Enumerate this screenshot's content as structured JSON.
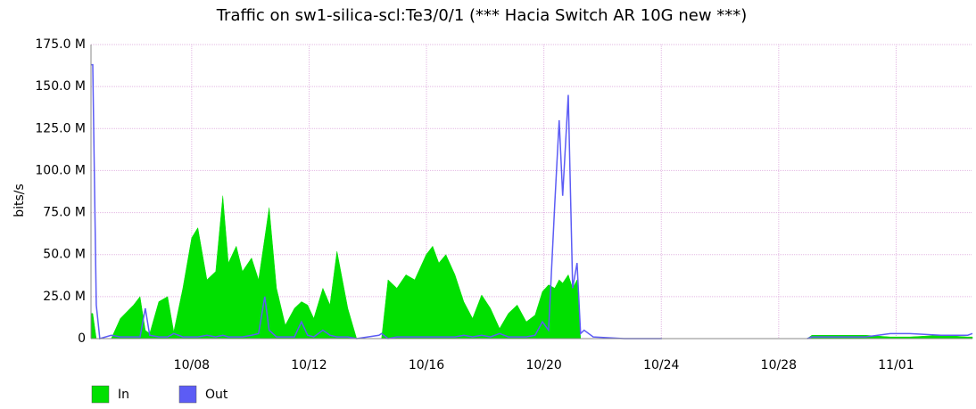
{
  "chart_data": {
    "type": "area",
    "title": "Traffic on sw1-silica-scl:Te3/0/1 (*** Hacia Switch AR 10G new ***)",
    "y_label": "bits/s",
    "x": [
      4.57,
      4.63,
      4.75,
      4.87,
      5.26,
      5.57,
      6.02,
      6.24,
      6.42,
      6.57,
      6.88,
      7.18,
      7.39,
      7.7,
      8.0,
      8.21,
      8.52,
      8.82,
      9.06,
      9.25,
      9.52,
      9.73,
      10.04,
      10.28,
      10.49,
      10.64,
      10.89,
      11.19,
      11.5,
      11.74,
      11.95,
      12.16,
      12.47,
      12.71,
      12.95,
      13.32,
      13.62,
      14.38,
      14.47,
      14.69,
      14.99,
      15.3,
      15.6,
      15.99,
      16.21,
      16.42,
      16.66,
      16.97,
      17.27,
      17.57,
      17.88,
      18.18,
      18.49,
      18.79,
      19.09,
      19.4,
      19.7,
      19.95,
      20.16,
      20.37,
      20.52,
      20.64,
      20.83,
      20.98,
      21.13,
      21.25,
      21.37,
      21.68,
      22.74,
      24.02,
      26.39,
      28.97,
      29.13,
      30.04,
      30.95,
      31.8,
      32.47,
      33.53,
      34.44,
      34.6
    ],
    "series": [
      {
        "name": "In",
        "color": "#00e000",
        "style": "area",
        "values": [
          15000000,
          15000000,
          0,
          0,
          0,
          12000000,
          20000000,
          25000000,
          5000000,
          3000000,
          22000000,
          25000000,
          4000000,
          30000000,
          60000000,
          66000000,
          35000000,
          40000000,
          85000000,
          45000000,
          55000000,
          40000000,
          48000000,
          35000000,
          60000000,
          78000000,
          30000000,
          8000000,
          18000000,
          22000000,
          20000000,
          12000000,
          30000000,
          20000000,
          52000000,
          18000000,
          0,
          0,
          0,
          35000000,
          30000000,
          38000000,
          35000000,
          50000000,
          55000000,
          45000000,
          50000000,
          38000000,
          22000000,
          12000000,
          26000000,
          18000000,
          6000000,
          15000000,
          20000000,
          10000000,
          14000000,
          28000000,
          32000000,
          30000000,
          35000000,
          33000000,
          38000000,
          30000000,
          35000000,
          0,
          0,
          0,
          0,
          0,
          null,
          0,
          2000000,
          2000000,
          2000000,
          1000000,
          1000000,
          2000000,
          1000000,
          1000000
        ]
      },
      {
        "name": "Out",
        "color": "#5c5cf5",
        "style": "line",
        "values": [
          163000000,
          163000000,
          20000000,
          0,
          2000000,
          1000000,
          1000000,
          1000000,
          18000000,
          2000000,
          1000000,
          1000000,
          3000000,
          1000000,
          1000000,
          1000000,
          2000000,
          1000000,
          2000000,
          1000000,
          1000000,
          1000000,
          2000000,
          3000000,
          25000000,
          5000000,
          1000000,
          1000000,
          1000000,
          10000000,
          2000000,
          1000000,
          5000000,
          2000000,
          1000000,
          1000000,
          0,
          2000000,
          3000000,
          0,
          1000000,
          1000000,
          1000000,
          1000000,
          1000000,
          1000000,
          1000000,
          1000000,
          2000000,
          1000000,
          2000000,
          1000000,
          3000000,
          1000000,
          1000000,
          1000000,
          2000000,
          10000000,
          5000000,
          80000000,
          130000000,
          85000000,
          145000000,
          30000000,
          45000000,
          3000000,
          5000000,
          1000000,
          0,
          0,
          null,
          0,
          1000000,
          1000000,
          1000000,
          3000000,
          3000000,
          2000000,
          2000000,
          3000000
        ]
      }
    ],
    "xlim": [
      4.57,
      34.6
    ],
    "xticks": [
      {
        "value": 8,
        "label": "10/08"
      },
      {
        "value": 12,
        "label": "10/12"
      },
      {
        "value": 16,
        "label": "10/16"
      },
      {
        "value": 20,
        "label": "10/20"
      },
      {
        "value": 24,
        "label": "10/24"
      },
      {
        "value": 28,
        "label": "10/28"
      },
      {
        "value": 32,
        "label": "11/01"
      }
    ],
    "ylim": [
      0,
      175000000
    ],
    "yticks": [
      0,
      {
        "value": 25000000,
        "label": "25.0 M"
      },
      {
        "value": 50000000,
        "label": "50.0 M"
      },
      {
        "value": 75000000,
        "label": "75.0 M"
      },
      {
        "value": 100000000,
        "label": "100.0 M"
      },
      {
        "value": 125000000,
        "label": "125.0 M"
      },
      {
        "value": 150000000,
        "label": "150.0 M"
      },
      {
        "value": 175000000,
        "label": "175.0 M"
      }
    ],
    "grid": true,
    "legend": "bottom-left"
  }
}
